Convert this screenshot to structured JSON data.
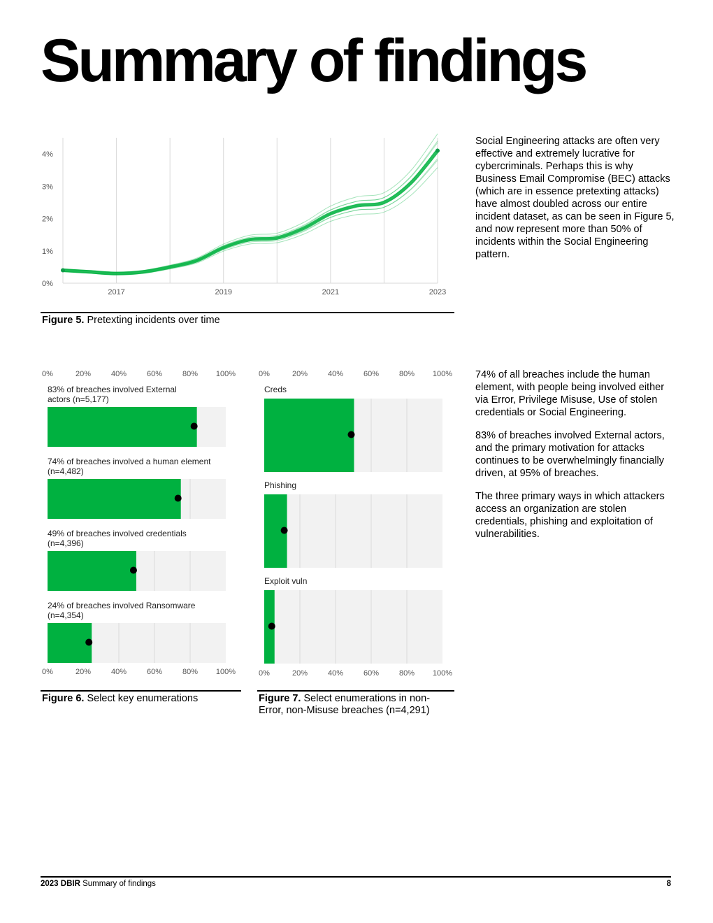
{
  "page": {
    "title": "Summary of findings",
    "paragraph_1": "Social Engineering attacks are often very effective and extremely lucrative for cybercriminals. Perhaps this is why Business Email Compromise (BEC) attacks (which are in essence pretexting attacks) have almost doubled across our entire incident dataset, as can be seen in Figure 5, and now represent more than 50% of incidents within the Social Engineering pattern.",
    "paragraph_2": "74% of all breaches include the human element, with people being involved either via Error, Privilege Misuse, Use of stolen credentials or Social Engineering.",
    "paragraph_3": "83% of breaches involved External actors, and the primary motivation for attacks continues to be overwhelmingly financially driven, at 95% of breaches.",
    "paragraph_4": "The three primary ways in which attackers access an organization are stolen credentials, phishing and exploitation of vulnerabilities.",
    "fig5_caption_bold": "Figure 5.",
    "fig5_caption_text": "Pretexting incidents over time",
    "fig6_caption_bold": "Figure 6.",
    "fig6_caption_text": "Select key enumerations",
    "fig7_caption_bold": "Figure 7.",
    "fig7_caption_text": "Select enumerations in non-Error, non-Misuse breaches (n=4,291)",
    "footer_bold": "2023 DBIR",
    "footer_text": "Summary of findings",
    "page_number": "8"
  },
  "colors": {
    "green": "#00b140",
    "panel": "#f2f2f2",
    "grid": "#d9d9d9",
    "dot": "#000000"
  },
  "chart_data": [
    {
      "type": "line",
      "x_tick_labels": [
        "2017",
        "2019",
        "2021",
        "2023"
      ],
      "y_tick_labels": [
        "0%",
        "1%",
        "2%",
        "3%",
        "4%"
      ],
      "ylim": [
        0,
        4.5
      ],
      "xlim": [
        2016,
        2023
      ],
      "x": [
        2016.0,
        2016.5,
        2017.0,
        2017.5,
        2018.0,
        2018.5,
        2019.0,
        2019.5,
        2020.0,
        2020.5,
        2021.0,
        2021.5,
        2022.0,
        2022.5,
        2023.0
      ],
      "y": [
        0.4,
        0.35,
        0.3,
        0.35,
        0.5,
        0.7,
        1.1,
        1.35,
        1.4,
        1.7,
        2.15,
        2.4,
        2.5,
        3.1,
        4.1
      ],
      "grid": true
    },
    {
      "type": "bar",
      "orientation": "horizontal",
      "x_tick_labels": [
        "0%",
        "20%",
        "40%",
        "60%",
        "80%",
        "100%"
      ],
      "xlim": [
        0,
        100
      ],
      "bars": [
        {
          "label_line1": "83% of breaches involved External",
          "label_line2": "actors (n=5,177)",
          "value": 83
        },
        {
          "label_line1": "74% of breaches involved a human element",
          "label_line2": "(n=4,482)",
          "value": 74
        },
        {
          "label_line1": "49% of breaches involved credentials",
          "label_line2": "(n=4,396)",
          "value": 49
        },
        {
          "label_line1": "24% of breaches involved Ransomware",
          "label_line2": "(n=4,354)",
          "value": 24
        }
      ]
    },
    {
      "type": "bar",
      "orientation": "horizontal",
      "x_tick_labels": [
        "0%",
        "20%",
        "40%",
        "60%",
        "80%",
        "100%"
      ],
      "xlim": [
        0,
        100
      ],
      "bars": [
        {
          "label_line1": "Creds",
          "label_line2": "",
          "value": 49.6
        },
        {
          "label_line1": "Phishing",
          "label_line2": "",
          "value": 12
        },
        {
          "label_line1": "Exploit vuln",
          "label_line2": "",
          "value": 5
        }
      ]
    }
  ]
}
